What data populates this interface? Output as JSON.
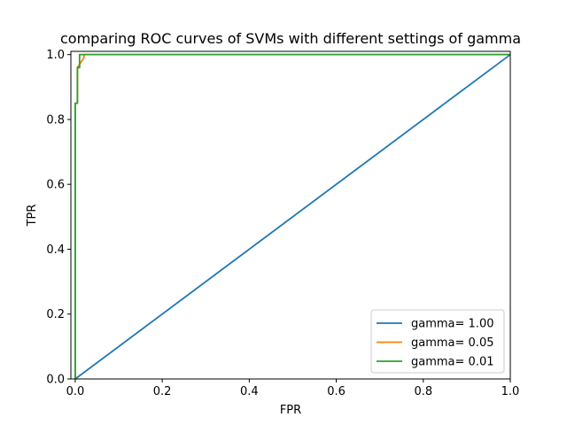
{
  "chart_data": {
    "type": "line",
    "title": "comparing ROC curves of SVMs with different settings of gamma",
    "xlabel": "FPR",
    "ylabel": "TPR",
    "xlim": [
      -0.01,
      1.0
    ],
    "ylim": [
      0.0,
      1.01
    ],
    "xticks": [
      0.0,
      0.2,
      0.4,
      0.6,
      0.8,
      1.0
    ],
    "yticks": [
      0.0,
      0.2,
      0.4,
      0.6,
      0.8,
      1.0
    ],
    "xtick_labels": [
      "0.0",
      "0.2",
      "0.4",
      "0.6",
      "0.8",
      "1.0"
    ],
    "ytick_labels": [
      "0.0",
      "0.2",
      "0.4",
      "0.6",
      "0.8",
      "1.0"
    ],
    "grid": false,
    "legend_position": "lower-right",
    "series": [
      {
        "name": "gamma= 1.00",
        "color": "#1f77b4",
        "x": [
          0.0,
          1.0
        ],
        "y": [
          0.0,
          1.0
        ]
      },
      {
        "name": "gamma= 0.05",
        "color": "#ff7f0e",
        "x": [
          0.0,
          0.0,
          0.005,
          0.005,
          0.02,
          0.02,
          1.0
        ],
        "y": [
          0.0,
          0.85,
          0.85,
          0.96,
          0.99,
          1.0,
          1.0
        ]
      },
      {
        "name": "gamma= 0.01",
        "color": "#2ca02c",
        "x": [
          0.0,
          0.0,
          0.005,
          0.005,
          0.01,
          0.01,
          1.0
        ],
        "y": [
          0.0,
          0.85,
          0.85,
          0.96,
          0.96,
          1.0,
          1.0
        ]
      }
    ]
  }
}
